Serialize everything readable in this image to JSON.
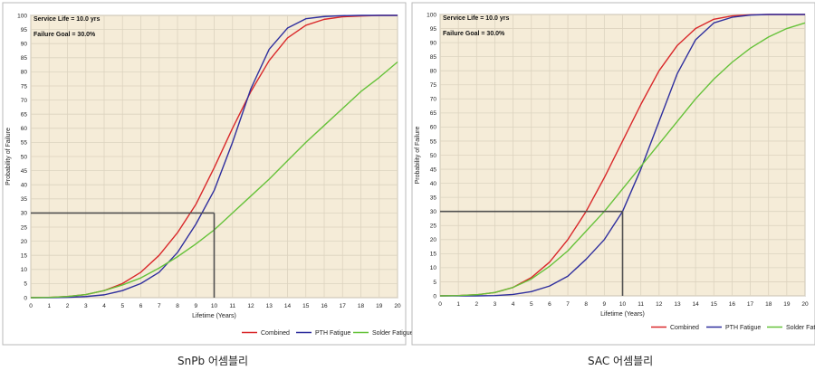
{
  "colors": {
    "combined": "#d9282a",
    "pth": "#2f2f9e",
    "solder": "#66c23a",
    "plot_bg": "#f5ecd8",
    "grid": "#dcd3bf",
    "goal_line": "#505050"
  },
  "chart_data": [
    {
      "type": "line",
      "caption": "SnPb 어셈블리",
      "annotations": [
        "Service Life = 10.0 yrs",
        "Failure Goal = 30.0%"
      ],
      "xlabel": "Lifetime (Years)",
      "ylabel": "Probability of Failure",
      "xlim": [
        0,
        20
      ],
      "ylim": [
        0,
        100
      ],
      "xticks": [
        0,
        1,
        2,
        3,
        4,
        5,
        6,
        7,
        8,
        9,
        10,
        11,
        12,
        13,
        14,
        15,
        16,
        17,
        18,
        19,
        20
      ],
      "yticks": [
        0,
        5,
        10,
        15,
        20,
        25,
        30,
        35,
        40,
        45,
        50,
        55,
        60,
        65,
        70,
        75,
        80,
        85,
        90,
        95,
        100
      ],
      "grid": true,
      "legend": "bottom-right",
      "service_life": 10,
      "failure_goal": 30,
      "x": [
        0,
        1,
        2,
        3,
        4,
        5,
        6,
        7,
        8,
        9,
        10,
        11,
        12,
        13,
        14,
        15,
        16,
        17,
        18,
        19,
        20
      ],
      "series": [
        {
          "name": "Combined",
          "color_key": "combined",
          "values": [
            0,
            0.1,
            0.4,
            1.1,
            2.5,
            5,
            9,
            15,
            23,
            33,
            46,
            60,
            73,
            84,
            92,
            96.5,
            98.6,
            99.5,
            99.8,
            100,
            100
          ]
        },
        {
          "name": "PTH Fatigue",
          "color_key": "pth",
          "values": [
            0,
            0,
            0.1,
            0.4,
            1,
            2.5,
            5,
            9,
            16,
            26,
            38,
            55,
            74,
            88,
            95.5,
            98.8,
            99.6,
            99.9,
            100,
            100,
            100
          ]
        },
        {
          "name": "Solder Fatigue",
          "color_key": "solder",
          "values": [
            0,
            0.1,
            0.4,
            1.1,
            2.5,
            4.5,
            7,
            10.5,
            14.5,
            19,
            24,
            30,
            36,
            42,
            48.5,
            55,
            61,
            67,
            73,
            78,
            83.5
          ]
        }
      ]
    },
    {
      "type": "line",
      "caption": "SAC 어셈블리",
      "annotations": [
        "Service Life = 10.0 yrs",
        "Failure Goal = 30.0%"
      ],
      "xlabel": "Lifetime (Years)",
      "ylabel": "Probability of Failure",
      "xlim": [
        0,
        20
      ],
      "ylim": [
        0,
        100
      ],
      "xticks": [
        0,
        1,
        2,
        3,
        4,
        5,
        6,
        7,
        8,
        9,
        10,
        11,
        12,
        13,
        14,
        15,
        16,
        17,
        18,
        19,
        20
      ],
      "yticks": [
        0,
        5,
        10,
        15,
        20,
        25,
        30,
        35,
        40,
        45,
        50,
        55,
        60,
        65,
        70,
        75,
        80,
        85,
        90,
        95,
        100
      ],
      "grid": true,
      "legend": "bottom-right",
      "service_life": 10,
      "failure_goal": 30,
      "x": [
        0,
        1,
        2,
        3,
        4,
        5,
        6,
        7,
        8,
        9,
        10,
        11,
        12,
        13,
        14,
        15,
        16,
        17,
        18,
        19,
        20
      ],
      "series": [
        {
          "name": "Combined",
          "color_key": "combined",
          "values": [
            0,
            0.1,
            0.4,
            1.2,
            3,
            6.5,
            12,
            20,
            30,
            42,
            55,
            68,
            80,
            89,
            95,
            98.3,
            99.5,
            99.9,
            100,
            100,
            100
          ]
        },
        {
          "name": "PTH Fatigue",
          "color_key": "pth",
          "values": [
            0,
            0,
            0,
            0.1,
            0.5,
            1.5,
            3.5,
            7,
            13,
            20,
            30,
            45,
            62,
            79,
            91,
            97,
            99,
            99.8,
            100,
            100,
            100
          ]
        },
        {
          "name": "Solder Fatigue",
          "color_key": "solder",
          "values": [
            0,
            0.1,
            0.4,
            1.2,
            3,
            6,
            10.5,
            16,
            23,
            30,
            38,
            46,
            54,
            62,
            70,
            77,
            83,
            88,
            92,
            95,
            97
          ]
        }
      ]
    }
  ]
}
